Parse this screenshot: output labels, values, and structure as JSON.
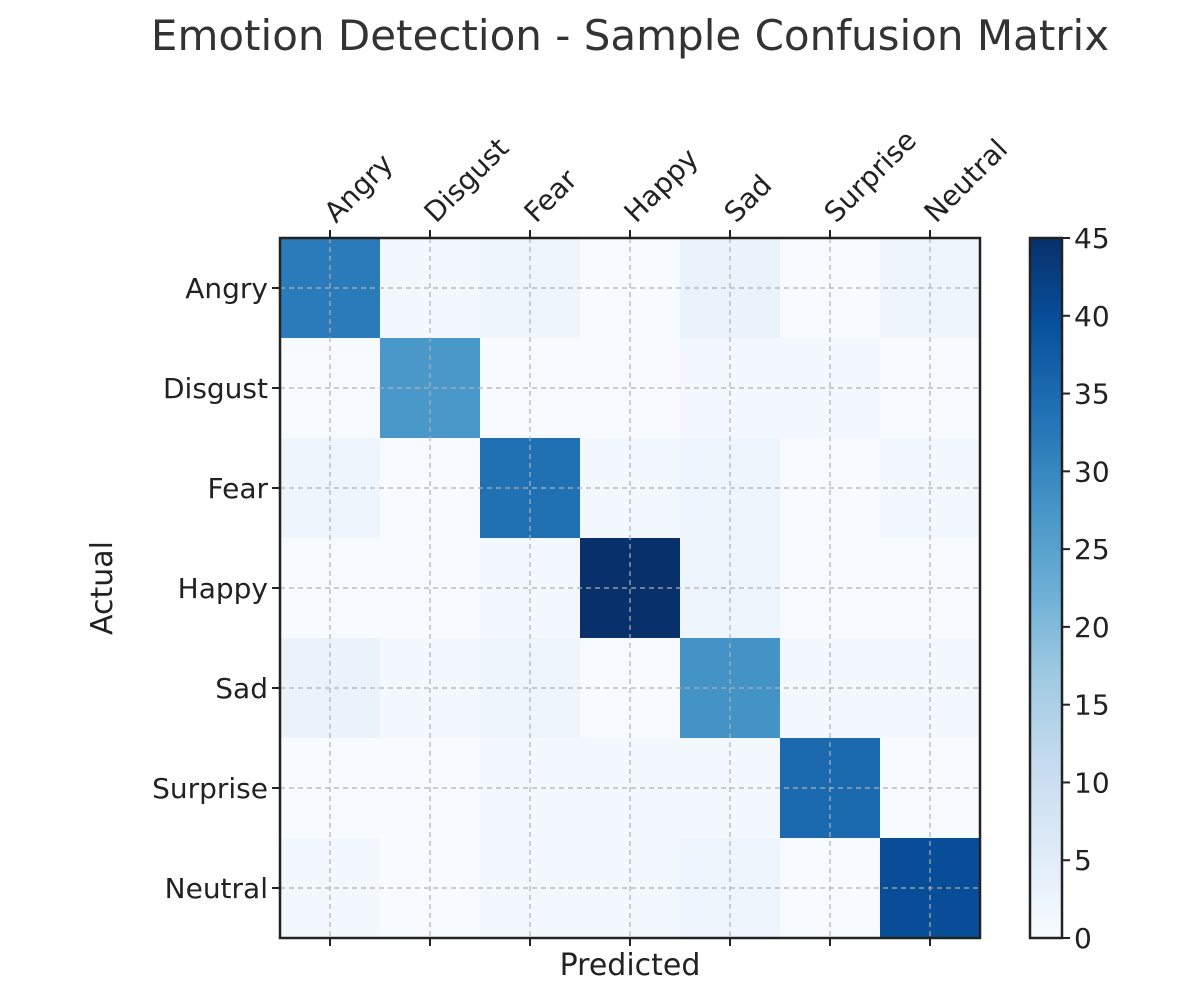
{
  "chart_data": {
    "type": "heatmap",
    "title": "Emotion Detection - Sample Confusion Matrix",
    "xlabel": "Predicted",
    "ylabel": "Actual",
    "x_categories": [
      "Angry",
      "Disgust",
      "Fear",
      "Happy",
      "Sad",
      "Surprise",
      "Neutral"
    ],
    "y_categories": [
      "Angry",
      "Disgust",
      "Fear",
      "Happy",
      "Sad",
      "Surprise",
      "Neutral"
    ],
    "values": [
      [
        32,
        1,
        2,
        0,
        3,
        0,
        2
      ],
      [
        0,
        27,
        0,
        0,
        1,
        1,
        0
      ],
      [
        2,
        0,
        34,
        1,
        2,
        0,
        1
      ],
      [
        0,
        0,
        1,
        45,
        2,
        0,
        0
      ],
      [
        3,
        1,
        2,
        0,
        28,
        1,
        1
      ],
      [
        0,
        0,
        1,
        1,
        1,
        35,
        0
      ],
      [
        1,
        0,
        1,
        1,
        2,
        0,
        40
      ]
    ],
    "color_range": [
      0,
      45
    ],
    "colorbar_ticks": [
      "0",
      "5",
      "10",
      "15",
      "20",
      "25",
      "30",
      "35",
      "40",
      "45"
    ],
    "colormap": "Blues",
    "grid": true
  }
}
